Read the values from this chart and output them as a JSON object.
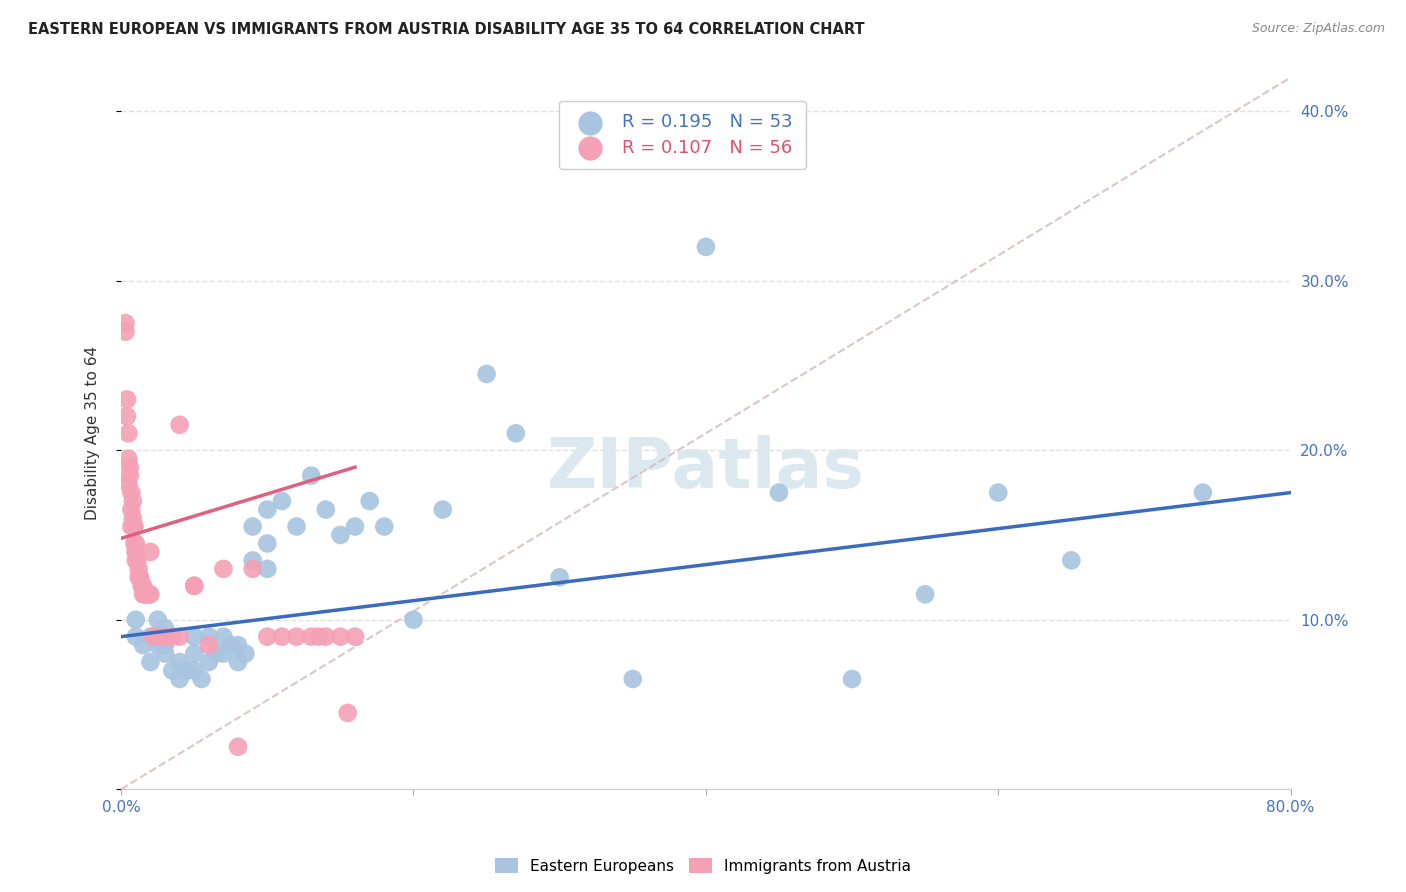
{
  "title": "EASTERN EUROPEAN VS IMMIGRANTS FROM AUSTRIA DISABILITY AGE 35 TO 64 CORRELATION CHART",
  "source": "Source: ZipAtlas.com",
  "ylabel": "Disability Age 35 to 64",
  "xlim": [
    0.0,
    0.8
  ],
  "ylim": [
    0.0,
    0.42
  ],
  "xticks": [
    0.0,
    0.2,
    0.4,
    0.6,
    0.8
  ],
  "xtick_labels": [
    "0.0%",
    "",
    "",
    "",
    "80.0%"
  ],
  "yticks": [
    0.0,
    0.1,
    0.2,
    0.3,
    0.4
  ],
  "ytick_labels_right": [
    "",
    "10.0%",
    "20.0%",
    "30.0%",
    "40.0%"
  ],
  "series1_name": "Eastern Europeans",
  "series1_color": "#a8c4e0",
  "series1_line_color": "#3a6bbf",
  "series1_R": 0.195,
  "series1_N": 53,
  "series2_name": "Immigrants from Austria",
  "series2_color": "#f4a0b5",
  "series2_line_color": "#e06080",
  "series2_R": 0.107,
  "series2_N": 56,
  "diag_line_color": "#d0b0b0",
  "background_color": "#ffffff",
  "grid_color": "#e0e0e0",
  "eastern_europeans_x": [
    0.01,
    0.01,
    0.015,
    0.02,
    0.02,
    0.025,
    0.025,
    0.03,
    0.03,
    0.03,
    0.035,
    0.04,
    0.04,
    0.045,
    0.05,
    0.05,
    0.05,
    0.055,
    0.06,
    0.06,
    0.065,
    0.07,
    0.07,
    0.075,
    0.08,
    0.08,
    0.085,
    0.09,
    0.09,
    0.1,
    0.1,
    0.1,
    0.11,
    0.12,
    0.13,
    0.14,
    0.15,
    0.16,
    0.17,
    0.18,
    0.2,
    0.22,
    0.25,
    0.27,
    0.3,
    0.35,
    0.4,
    0.45,
    0.5,
    0.55,
    0.6,
    0.65,
    0.74
  ],
  "eastern_europeans_y": [
    0.09,
    0.1,
    0.085,
    0.075,
    0.09,
    0.085,
    0.1,
    0.08,
    0.085,
    0.095,
    0.07,
    0.065,
    0.075,
    0.07,
    0.07,
    0.08,
    0.09,
    0.065,
    0.075,
    0.09,
    0.08,
    0.08,
    0.09,
    0.085,
    0.075,
    0.085,
    0.08,
    0.135,
    0.155,
    0.13,
    0.145,
    0.165,
    0.17,
    0.155,
    0.185,
    0.165,
    0.15,
    0.155,
    0.17,
    0.155,
    0.1,
    0.165,
    0.245,
    0.21,
    0.125,
    0.065,
    0.32,
    0.175,
    0.065,
    0.115,
    0.175,
    0.135,
    0.175
  ],
  "immigrants_austria_x": [
    0.003,
    0.003,
    0.004,
    0.004,
    0.005,
    0.005,
    0.005,
    0.006,
    0.006,
    0.007,
    0.007,
    0.007,
    0.008,
    0.008,
    0.009,
    0.009,
    0.009,
    0.01,
    0.01,
    0.01,
    0.01,
    0.011,
    0.012,
    0.012,
    0.013,
    0.014,
    0.015,
    0.015,
    0.016,
    0.017,
    0.018,
    0.019,
    0.02,
    0.02,
    0.022,
    0.025,
    0.025,
    0.03,
    0.035,
    0.04,
    0.04,
    0.05,
    0.05,
    0.06,
    0.07,
    0.08,
    0.09,
    0.1,
    0.11,
    0.12,
    0.13,
    0.135,
    0.14,
    0.15,
    0.155,
    0.16
  ],
  "immigrants_austria_y": [
    0.27,
    0.275,
    0.22,
    0.23,
    0.195,
    0.21,
    0.18,
    0.185,
    0.19,
    0.165,
    0.175,
    0.155,
    0.16,
    0.17,
    0.155,
    0.155,
    0.145,
    0.14,
    0.145,
    0.14,
    0.135,
    0.135,
    0.13,
    0.125,
    0.125,
    0.12,
    0.12,
    0.115,
    0.115,
    0.115,
    0.115,
    0.115,
    0.115,
    0.14,
    0.09,
    0.09,
    0.09,
    0.09,
    0.09,
    0.215,
    0.09,
    0.12,
    0.12,
    0.085,
    0.13,
    0.025,
    0.13,
    0.09,
    0.09,
    0.09,
    0.09,
    0.09,
    0.09,
    0.09,
    0.045,
    0.09
  ]
}
